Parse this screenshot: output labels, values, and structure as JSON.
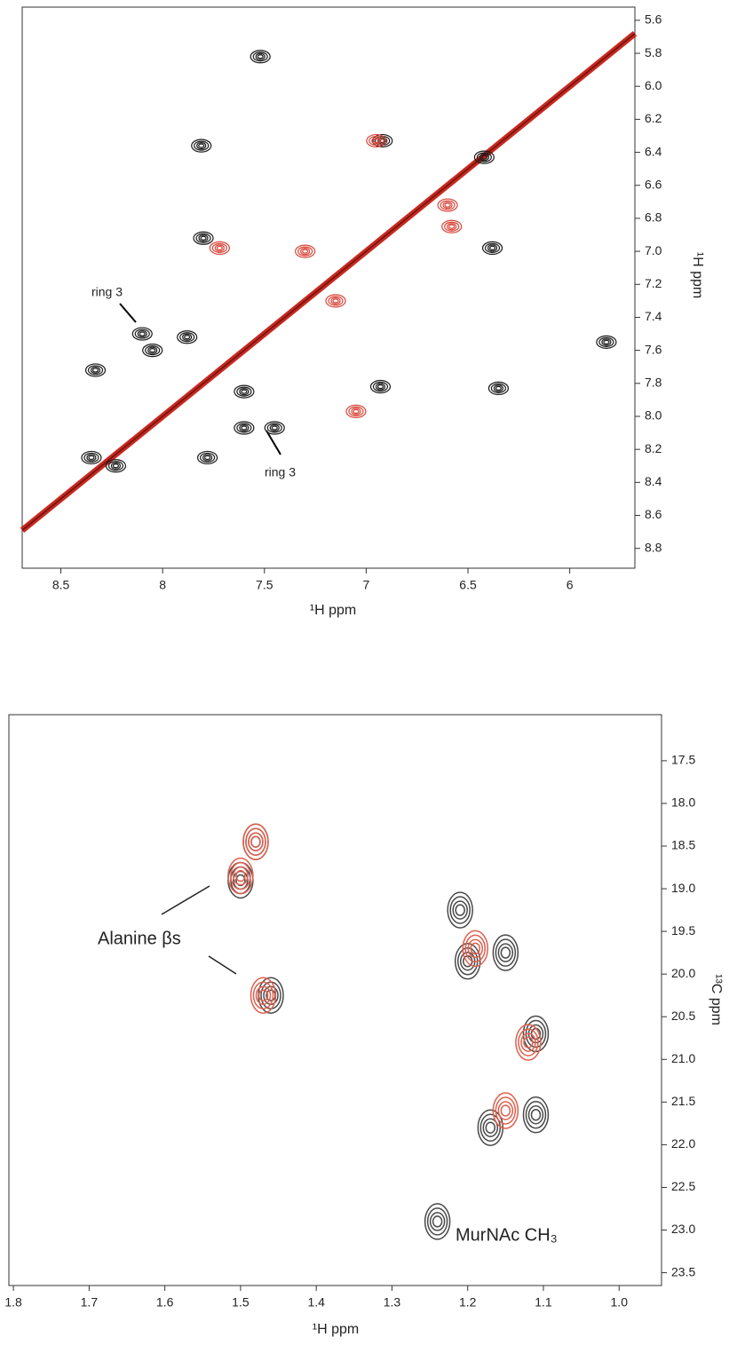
{
  "chart_data": [
    {
      "type": "contour",
      "xlabel": "¹H ppm",
      "ylabel": "¹H ppm",
      "xlim": [
        8.69,
        5.68
      ],
      "ylim": [
        5.52,
        8.92
      ],
      "xticks": [
        8.5,
        8.0,
        7.5,
        7.0,
        6.5,
        6.0
      ],
      "yticks": [
        5.6,
        5.8,
        {
          "value": 6.0,
          "label": "6.0"
        },
        6.2,
        6.4,
        6.6,
        6.8,
        {
          "value": 7.0,
          "label": "7.0"
        },
        7.2,
        7.4,
        7.6,
        7.8,
        {
          "value": 8.0,
          "label": "8.0"
        },
        8.2,
        8.4,
        8.6,
        8.8
      ],
      "annotations": [
        "ring 3",
        "ring 3"
      ],
      "diagonal": {
        "color": "#c8281e",
        "x": [
          8.69,
          5.68
        ],
        "y": [
          8.69,
          5.68
        ]
      },
      "series": [
        {
          "color": "#1a1a1a",
          "x": [
            7.52,
            6.42,
            6.38,
            5.82,
            6.35,
            6.93,
            7.6,
            7.6,
            7.45,
            8.1,
            8.05,
            8.33,
            8.23,
            7.8,
            7.88,
            7.78,
            8.35,
            6.92,
            7.81
          ],
          "y": [
            5.82,
            6.43,
            6.98,
            7.55,
            7.83,
            7.82,
            7.85,
            8.07,
            8.07,
            7.5,
            7.6,
            7.72,
            8.3,
            6.92,
            7.52,
            8.25,
            8.25,
            6.33,
            6.36
          ]
        },
        {
          "color": "#d9463a",
          "x": [
            7.72,
            7.05,
            6.95,
            6.58,
            6.6,
            7.3,
            7.15
          ],
          "y": [
            6.98,
            7.97,
            6.33,
            6.85,
            6.72,
            7.0,
            7.3
          ]
        }
      ]
    },
    {
      "type": "contour",
      "xlabel": "¹H ppm",
      "ylabel": "¹³C ppm",
      "xlim": [
        1.806,
        0.944
      ],
      "ylim": [
        16.96,
        23.65
      ],
      "xticks": [
        1.8,
        1.7,
        1.6,
        1.5,
        1.4,
        1.3,
        1.2,
        1.1,
        {
          "value": 1.0,
          "label": "1.0"
        }
      ],
      "yticks": [
        17.5,
        {
          "value": 18.0,
          "label": "18.0"
        },
        18.5,
        {
          "value": 19.0,
          "label": "19.0"
        },
        19.5,
        {
          "value": 20.0,
          "label": "20.0"
        },
        20.5,
        {
          "value": 21.0,
          "label": "21.0"
        },
        21.5,
        {
          "value": 22.0,
          "label": "22.0"
        },
        22.5,
        {
          "value": 23.0,
          "label": "23.0"
        },
        23.5
      ],
      "annotations": [
        "Alanine βs",
        "MurNAc CH₃"
      ],
      "series": [
        {
          "color": "#4a4a4a",
          "x": [
            1.48,
            1.46,
            1.21,
            1.2,
            1.15,
            1.11,
            1.11,
            1.17,
            1.24,
            1.5
          ],
          "y": [
            18.45,
            20.25,
            19.25,
            19.85,
            19.75,
            20.7,
            21.65,
            21.8,
            22.9,
            18.9
          ]
        },
        {
          "color": "#e0604e",
          "x": [
            1.5,
            1.48,
            1.47,
            1.19,
            1.12,
            1.15
          ],
          "y": [
            18.85,
            18.45,
            20.25,
            19.7,
            20.8,
            21.6
          ]
        }
      ]
    }
  ]
}
